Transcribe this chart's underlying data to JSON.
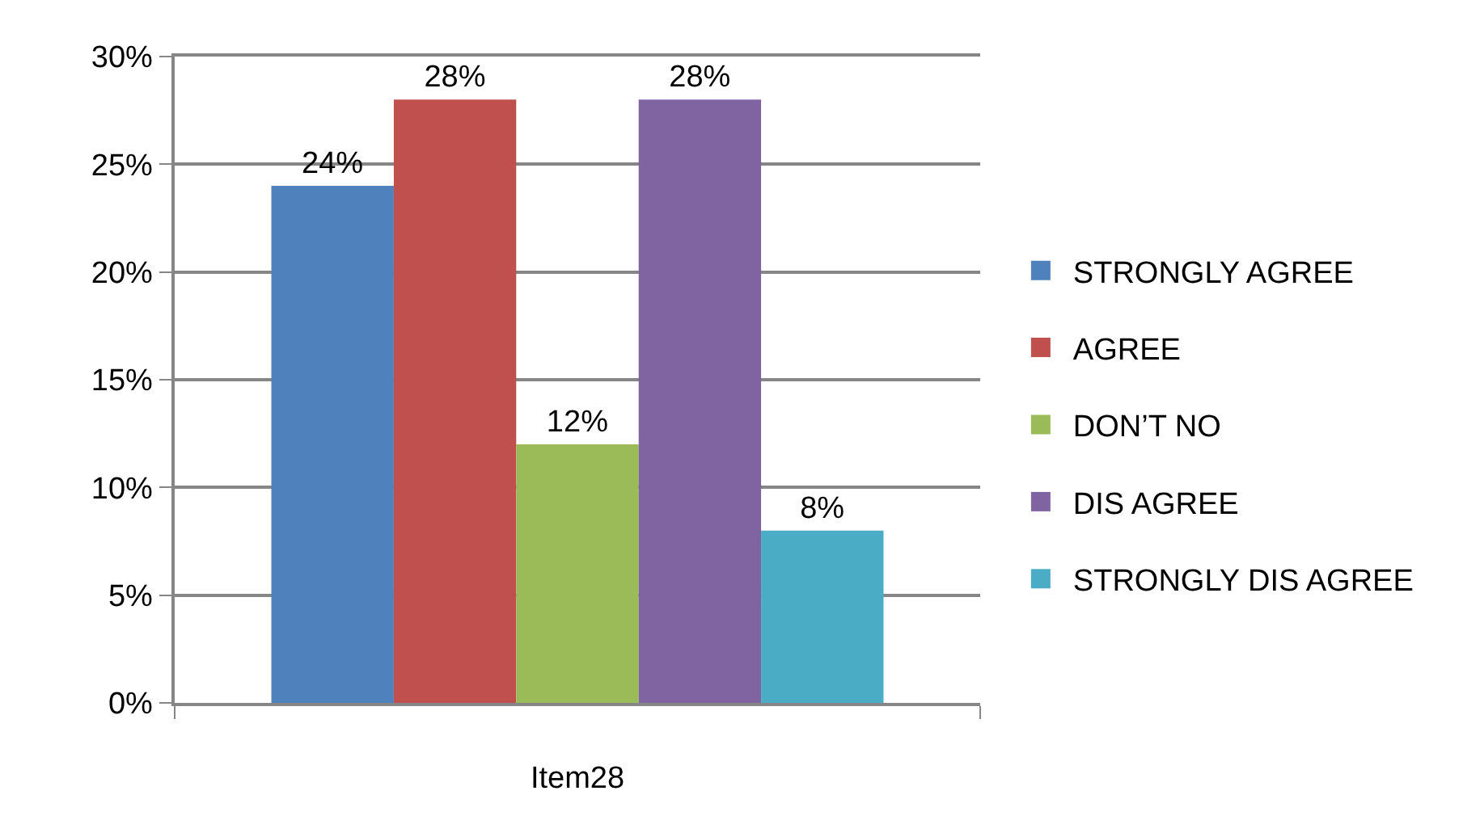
{
  "chart_data": {
    "type": "bar",
    "categories": [
      "Item28"
    ],
    "series": [
      {
        "name": "STRONGLY AGREE",
        "color": "#4f81bd",
        "values": [
          24
        ],
        "value_labels": [
          "24%"
        ]
      },
      {
        "name": "AGREE",
        "color": "#c0504d",
        "values": [
          28
        ],
        "value_labels": [
          "28%"
        ]
      },
      {
        "name": "DON’T NO",
        "color": "#9bbb59",
        "values": [
          12
        ],
        "value_labels": [
          "12%"
        ]
      },
      {
        "name": "DIS AGREE",
        "color": "#8064a2",
        "values": [
          28
        ],
        "value_labels": [
          "28%"
        ]
      },
      {
        "name": "STRONGLY DIS AGREE",
        "color": "#4bacc6",
        "values": [
          8
        ],
        "value_labels": [
          "8%"
        ]
      }
    ],
    "ylim": [
      0,
      30
    ],
    "yticks": [
      {
        "value": 0,
        "label": "0%"
      },
      {
        "value": 5,
        "label": "5%"
      },
      {
        "value": 10,
        "label": "10%"
      },
      {
        "value": 15,
        "label": "15%"
      },
      {
        "value": 20,
        "label": "20%"
      },
      {
        "value": 25,
        "label": "25%"
      },
      {
        "value": 30,
        "label": "30%"
      }
    ],
    "grid": "y",
    "legend": "right"
  }
}
